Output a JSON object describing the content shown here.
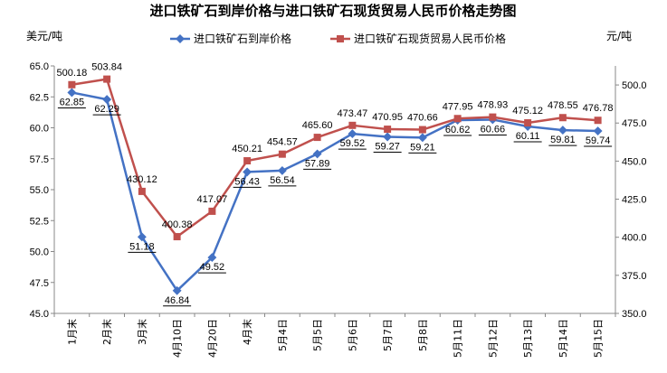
{
  "chart_data": {
    "type": "line",
    "title": "进口铁矿石到岸价格与进口铁矿石现货贸易人民币价格走势图",
    "ylabel_left": "美元/吨",
    "ylabel_right": "元/吨",
    "categories": [
      "1月末",
      "2月末",
      "3月末",
      "4月10日",
      "4月20日",
      "4月末",
      "5月4日",
      "5月5日",
      "5月6日",
      "5月7日",
      "5月8日",
      "5月11日",
      "5月12日",
      "5月13日",
      "5月14日",
      "5月15日"
    ],
    "y_left_range": [
      45.0,
      65.0
    ],
    "y_left_ticks": [
      "45.0",
      "47.5",
      "50.0",
      "52.5",
      "55.0",
      "57.5",
      "60.0",
      "62.5",
      "65.0"
    ],
    "y_right_range": [
      350.0,
      512.5
    ],
    "y_right_ticks": [
      "350.0",
      "375.0",
      "400.0",
      "425.0",
      "450.0",
      "475.0",
      "500.0"
    ],
    "legend_position": "top",
    "series": [
      {
        "name": "进口铁矿石到岸价格",
        "axis": "left",
        "color": "#4472C4",
        "marker": "diamond",
        "values": [
          62.85,
          62.29,
          51.18,
          46.84,
          49.52,
          56.43,
          56.54,
          57.89,
          59.52,
          59.27,
          59.21,
          60.62,
          60.66,
          60.11,
          59.81,
          59.74
        ],
        "labels": [
          "62.85",
          "62.29",
          "51.18",
          "46.84",
          "49.52",
          "56.43",
          "56.54",
          "57.89",
          "59.52",
          "59.27",
          "59.21",
          "60.62",
          "60.66",
          "60.11",
          "59.81",
          "59.74"
        ]
      },
      {
        "name": "进口铁矿石现货贸易人民币价格",
        "axis": "right",
        "color": "#C0504D",
        "marker": "square",
        "values": [
          500.18,
          503.84,
          430.12,
          400.38,
          417.07,
          450.21,
          454.57,
          465.6,
          473.47,
          470.95,
          470.66,
          477.95,
          478.93,
          475.12,
          478.55,
          476.78
        ],
        "labels": [
          "500.18",
          "503.84",
          "430.12",
          "400.38",
          "417.07",
          "450.21",
          "454.57",
          "465.60",
          "473.47",
          "470.95",
          "470.66",
          "477.95",
          "478.93",
          "475.12",
          "478.55",
          "476.78"
        ]
      }
    ]
  }
}
